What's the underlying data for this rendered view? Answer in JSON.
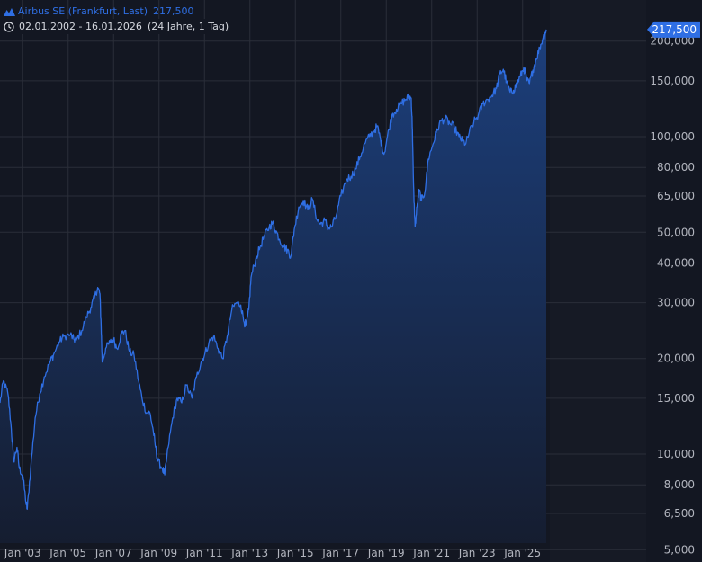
{
  "legend": {
    "instrument": "Airbus SE (Frankfurt, Last)",
    "last_value": "217,500",
    "date_range": "02.01.2002 - 16.01.2026",
    "span": "(24 Jahre, 1 Tag)"
  },
  "price_tag": "217,500",
  "colors": {
    "background": "#131722",
    "grid": "#2a2e39",
    "line": "#2f6fe4",
    "area_top": "#1c3f7c",
    "area_bottom": "#151d30",
    "axis_text": "#b2b5be",
    "price_tag_bg": "#2f6fe4"
  },
  "icons": {
    "legend_series": "mountain-icon",
    "legend_range": "clock-icon"
  },
  "chart_data": {
    "type": "area",
    "y_scale": "log",
    "grid": true,
    "x_ticks": [
      {
        "label": "Jan '03",
        "t": 2003.0
      },
      {
        "label": "Jan '05",
        "t": 2005.0
      },
      {
        "label": "Jan '07",
        "t": 2007.0
      },
      {
        "label": "Jan '09",
        "t": 2009.0
      },
      {
        "label": "Jan '11",
        "t": 2011.0
      },
      {
        "label": "Jan '13",
        "t": 2013.0
      },
      {
        "label": "Jan '15",
        "t": 2015.0
      },
      {
        "label": "Jan '17",
        "t": 2017.0
      },
      {
        "label": "Jan '19",
        "t": 2019.0
      },
      {
        "label": "Jan '21",
        "t": 2021.0
      },
      {
        "label": "Jan '23",
        "t": 2023.0
      },
      {
        "label": "Jan '25",
        "t": 2025.0
      }
    ],
    "y_ticks": [
      {
        "label": "5,000",
        "v": 5
      },
      {
        "label": "6,500",
        "v": 6.5
      },
      {
        "label": "8,000",
        "v": 8
      },
      {
        "label": "10,000",
        "v": 10
      },
      {
        "label": "15,000",
        "v": 15
      },
      {
        "label": "20,000",
        "v": 20
      },
      {
        "label": "30,000",
        "v": 30
      },
      {
        "label": "40,000",
        "v": 40
      },
      {
        "label": "50,000",
        "v": 50
      },
      {
        "label": "65,000",
        "v": 65
      },
      {
        "label": "80,000",
        "v": 80
      },
      {
        "label": "100,000",
        "v": 100
      },
      {
        "label": "150,000",
        "v": 150
      },
      {
        "label": "200,000",
        "v": 200
      }
    ],
    "y_range": [
      5,
      250
    ],
    "x_range": [
      2002.0,
      2026.04
    ],
    "series": [
      {
        "points": [
          [
            2002.0,
            14.5
          ],
          [
            2002.15,
            17.0
          ],
          [
            2002.35,
            15.5
          ],
          [
            2002.5,
            12.0
          ],
          [
            2002.6,
            9.5
          ],
          [
            2002.75,
            10.5
          ],
          [
            2002.85,
            9.0
          ],
          [
            2003.0,
            8.6
          ],
          [
            2003.15,
            7.0
          ],
          [
            2003.2,
            6.7
          ],
          [
            2003.35,
            9.0
          ],
          [
            2003.55,
            13.0
          ],
          [
            2003.75,
            15.5
          ],
          [
            2003.95,
            17.5
          ],
          [
            2004.2,
            19.5
          ],
          [
            2004.35,
            20.5
          ],
          [
            2004.6,
            22.5
          ],
          [
            2004.8,
            23.5
          ],
          [
            2005.1,
            23.8
          ],
          [
            2005.25,
            23.0
          ],
          [
            2005.35,
            22.8
          ],
          [
            2005.6,
            24.5
          ],
          [
            2005.8,
            27.0
          ],
          [
            2006.0,
            29.0
          ],
          [
            2006.15,
            31.0
          ],
          [
            2006.3,
            33.5
          ],
          [
            2006.4,
            32.0
          ],
          [
            2006.45,
            25.5
          ],
          [
            2006.5,
            19.5
          ],
          [
            2006.65,
            21.5
          ],
          [
            2006.85,
            22.5
          ],
          [
            2007.0,
            23.0
          ],
          [
            2007.15,
            21.5
          ],
          [
            2007.35,
            24.0
          ],
          [
            2007.5,
            24.5
          ],
          [
            2007.7,
            21.0
          ],
          [
            2007.9,
            20.5
          ],
          [
            2008.1,
            17.0
          ],
          [
            2008.25,
            15.0
          ],
          [
            2008.45,
            13.5
          ],
          [
            2008.6,
            13.5
          ],
          [
            2008.75,
            11.8
          ],
          [
            2008.85,
            10.5
          ],
          [
            2008.95,
            9.5
          ],
          [
            2009.15,
            9.0
          ],
          [
            2009.25,
            8.6
          ],
          [
            2009.4,
            10.5
          ],
          [
            2009.6,
            13.0
          ],
          [
            2009.8,
            15.0
          ],
          [
            2010.0,
            14.5
          ],
          [
            2010.2,
            16.5
          ],
          [
            2010.45,
            15.0
          ],
          [
            2010.65,
            17.5
          ],
          [
            2010.85,
            19.5
          ],
          [
            2011.0,
            20.5
          ],
          [
            2011.2,
            22.5
          ],
          [
            2011.4,
            23.5
          ],
          [
            2011.6,
            21.5
          ],
          [
            2011.8,
            20.0
          ],
          [
            2012.0,
            23.5
          ],
          [
            2012.2,
            28.5
          ],
          [
            2012.4,
            30.0
          ],
          [
            2012.6,
            29.5
          ],
          [
            2012.75,
            26.0
          ],
          [
            2012.85,
            25.5
          ],
          [
            2012.95,
            28.5
          ],
          [
            2013.05,
            36.0
          ],
          [
            2013.25,
            41.0
          ],
          [
            2013.45,
            45.0
          ],
          [
            2013.65,
            49.0
          ],
          [
            2013.85,
            52.0
          ],
          [
            2014.0,
            53.5
          ],
          [
            2014.15,
            50.5
          ],
          [
            2014.3,
            47.5
          ],
          [
            2014.5,
            45.0
          ],
          [
            2014.65,
            44.0
          ],
          [
            2014.8,
            42.0
          ],
          [
            2014.95,
            51.0
          ],
          [
            2015.15,
            60.0
          ],
          [
            2015.35,
            63.0
          ],
          [
            2015.55,
            59.0
          ],
          [
            2015.75,
            63.5
          ],
          [
            2015.95,
            55.0
          ],
          [
            2016.1,
            53.0
          ],
          [
            2016.3,
            54.5
          ],
          [
            2016.45,
            51.5
          ],
          [
            2016.6,
            52.0
          ],
          [
            2016.8,
            56.5
          ],
          [
            2017.0,
            65.0
          ],
          [
            2017.25,
            73.5
          ],
          [
            2017.45,
            75.0
          ],
          [
            2017.65,
            79.0
          ],
          [
            2017.85,
            86.5
          ],
          [
            2018.05,
            95.0
          ],
          [
            2018.25,
            100.0
          ],
          [
            2018.45,
            104.0
          ],
          [
            2018.6,
            108.0
          ],
          [
            2018.75,
            98.0
          ],
          [
            2018.9,
            88.0
          ],
          [
            2019.05,
            100.0
          ],
          [
            2019.25,
            117.0
          ],
          [
            2019.45,
            122.0
          ],
          [
            2019.65,
            127.0
          ],
          [
            2019.85,
            131.0
          ],
          [
            2020.0,
            134.0
          ],
          [
            2020.1,
            132.0
          ],
          [
            2020.15,
            105.0
          ],
          [
            2020.2,
            70.0
          ],
          [
            2020.27,
            52.0
          ],
          [
            2020.35,
            60.0
          ],
          [
            2020.45,
            68.0
          ],
          [
            2020.55,
            63.0
          ],
          [
            2020.7,
            67.0
          ],
          [
            2020.85,
            85.0
          ],
          [
            2021.0,
            92.0
          ],
          [
            2021.2,
            103.0
          ],
          [
            2021.4,
            112.0
          ],
          [
            2021.6,
            114.0
          ],
          [
            2021.8,
            110.0
          ],
          [
            2022.0,
            107.0
          ],
          [
            2022.2,
            100.0
          ],
          [
            2022.35,
            97.0
          ],
          [
            2022.5,
            95.0
          ],
          [
            2022.65,
            103.0
          ],
          [
            2022.85,
            111.0
          ],
          [
            2023.05,
            117.0
          ],
          [
            2023.25,
            127.0
          ],
          [
            2023.45,
            131.0
          ],
          [
            2023.65,
            135.0
          ],
          [
            2023.85,
            142.0
          ],
          [
            2024.0,
            158.0
          ],
          [
            2024.15,
            163.0
          ],
          [
            2024.3,
            148.0
          ],
          [
            2024.45,
            138.0
          ],
          [
            2024.6,
            140.0
          ],
          [
            2024.75,
            147.0
          ],
          [
            2024.9,
            155.0
          ],
          [
            2025.05,
            165.0
          ],
          [
            2025.2,
            150.0
          ],
          [
            2025.3,
            147.0
          ],
          [
            2025.45,
            162.0
          ],
          [
            2025.6,
            176.0
          ],
          [
            2025.75,
            190.0
          ],
          [
            2025.9,
            205.0
          ],
          [
            2026.04,
            217.5
          ]
        ]
      }
    ]
  }
}
